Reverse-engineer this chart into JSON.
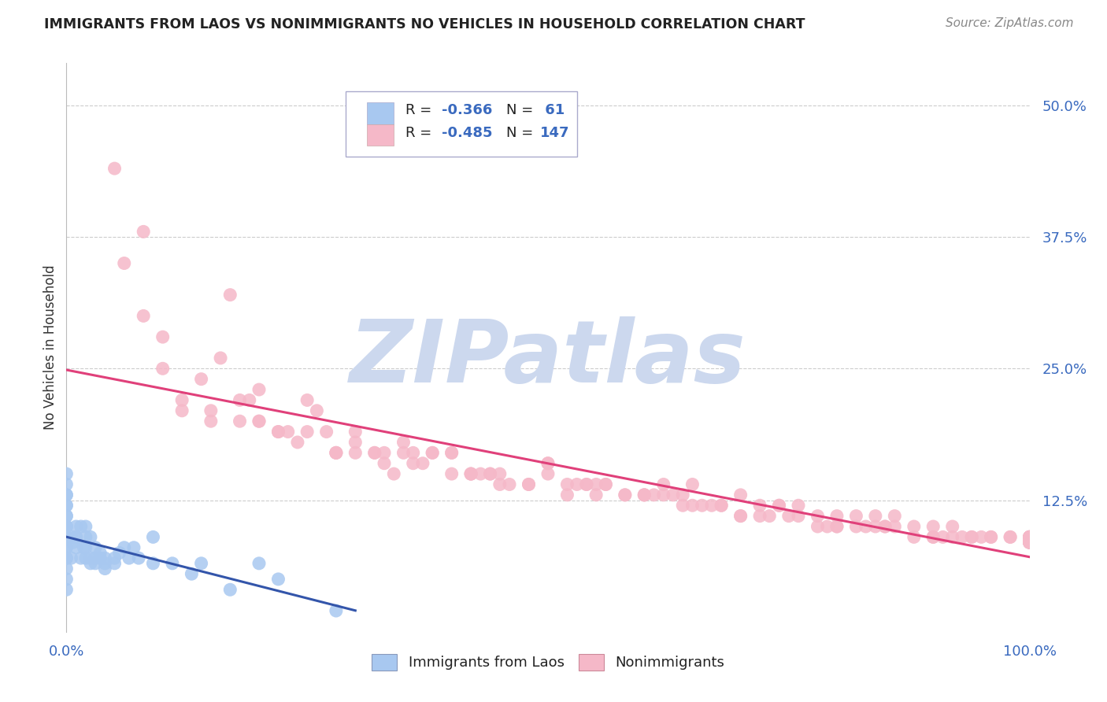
{
  "title": "IMMIGRANTS FROM LAOS VS NONIMMIGRANTS NO VEHICLES IN HOUSEHOLD CORRELATION CHART",
  "source": "Source: ZipAtlas.com",
  "ylabel": "No Vehicles in Household",
  "xlim": [
    0.0,
    1.0
  ],
  "ylim": [
    0.0,
    0.54
  ],
  "yticks_right": [
    0.125,
    0.25,
    0.375,
    0.5
  ],
  "yticklabels_right": [
    "12.5%",
    "25.0%",
    "37.5%",
    "50.0%"
  ],
  "blue_color": "#a8c8f0",
  "pink_color": "#f5b8c8",
  "blue_line_color": "#3355aa",
  "pink_line_color": "#e0407a",
  "blue_label": "Immigrants from Laos",
  "pink_label": "Nonimmigrants",
  "background_color": "#ffffff",
  "grid_color": "#cccccc",
  "watermark": "ZIPatlas",
  "watermark_color": "#ccd8ee",
  "title_color": "#222222",
  "axis_label_color": "#3a6abf",
  "blue_scatter_x": [
    0.0,
    0.0,
    0.0,
    0.0,
    0.0,
    0.0,
    0.0,
    0.0,
    0.0,
    0.0,
    0.0,
    0.0,
    0.0,
    0.0,
    0.0,
    0.0,
    0.0,
    0.0,
    0.0,
    0.0,
    0.005,
    0.005,
    0.007,
    0.01,
    0.01,
    0.01,
    0.01,
    0.015,
    0.015,
    0.018,
    0.02,
    0.02,
    0.02,
    0.02,
    0.025,
    0.025,
    0.025,
    0.03,
    0.03,
    0.03,
    0.035,
    0.035,
    0.04,
    0.04,
    0.04,
    0.05,
    0.05,
    0.055,
    0.06,
    0.065,
    0.07,
    0.075,
    0.09,
    0.09,
    0.11,
    0.13,
    0.14,
    0.17,
    0.2,
    0.22,
    0.28
  ],
  "blue_scatter_y": [
    0.04,
    0.05,
    0.06,
    0.07,
    0.07,
    0.08,
    0.08,
    0.09,
    0.09,
    0.1,
    0.1,
    0.1,
    0.11,
    0.11,
    0.12,
    0.12,
    0.13,
    0.13,
    0.14,
    0.15,
    0.07,
    0.09,
    0.085,
    0.08,
    0.09,
    0.09,
    0.1,
    0.07,
    0.1,
    0.08,
    0.07,
    0.08,
    0.09,
    0.1,
    0.065,
    0.07,
    0.09,
    0.065,
    0.07,
    0.08,
    0.07,
    0.075,
    0.06,
    0.065,
    0.07,
    0.065,
    0.07,
    0.075,
    0.08,
    0.07,
    0.08,
    0.07,
    0.065,
    0.09,
    0.065,
    0.055,
    0.065,
    0.04,
    0.065,
    0.05,
    0.02
  ],
  "pink_scatter_x": [
    0.05,
    0.08,
    0.1,
    0.12,
    0.15,
    0.17,
    0.18,
    0.2,
    0.22,
    0.25,
    0.27,
    0.28,
    0.3,
    0.32,
    0.33,
    0.35,
    0.36,
    0.38,
    0.4,
    0.42,
    0.44,
    0.45,
    0.48,
    0.5,
    0.52,
    0.54,
    0.56,
    0.58,
    0.6,
    0.62,
    0.64,
    0.65,
    0.68,
    0.7,
    0.72,
    0.74,
    0.76,
    0.78,
    0.8,
    0.82,
    0.84,
    0.86,
    0.88,
    0.9,
    0.92,
    0.94,
    0.96,
    0.98,
    1.0,
    1.0,
    1.0,
    1.0,
    1.0,
    1.0,
    1.0,
    1.0,
    1.0,
    1.0,
    1.0,
    1.0,
    0.1,
    0.15,
    0.2,
    0.25,
    0.3,
    0.35,
    0.4,
    0.45,
    0.5,
    0.55,
    0.6,
    0.65,
    0.7,
    0.75,
    0.8,
    0.85,
    0.9,
    0.95,
    1.0,
    1.0,
    0.12,
    0.18,
    0.24,
    0.3,
    0.36,
    0.42,
    0.48,
    0.54,
    0.6,
    0.66,
    0.72,
    0.78,
    0.84,
    0.9,
    0.96,
    1.0,
    1.0,
    1.0,
    0.22,
    0.28,
    0.34,
    0.4,
    0.46,
    0.52,
    0.58,
    0.64,
    0.7,
    0.76,
    0.82,
    0.88,
    0.94,
    1.0,
    0.08,
    0.16,
    0.26,
    0.38,
    0.5,
    0.62,
    0.74,
    0.86,
    0.98,
    0.2,
    0.32,
    0.44,
    0.56,
    0.68,
    0.8,
    0.92,
    0.06,
    0.14,
    0.23,
    0.33,
    0.43,
    0.53,
    0.63,
    0.73,
    0.83,
    0.93,
    0.28,
    0.42,
    0.55,
    0.67,
    0.79,
    0.91,
    0.19,
    0.37,
    0.61,
    0.85
  ],
  "pink_scatter_y": [
    0.44,
    0.3,
    0.28,
    0.21,
    0.2,
    0.32,
    0.22,
    0.2,
    0.19,
    0.22,
    0.19,
    0.17,
    0.19,
    0.17,
    0.16,
    0.18,
    0.17,
    0.17,
    0.17,
    0.15,
    0.15,
    0.14,
    0.14,
    0.15,
    0.14,
    0.14,
    0.14,
    0.13,
    0.13,
    0.13,
    0.13,
    0.14,
    0.12,
    0.13,
    0.12,
    0.12,
    0.12,
    0.11,
    0.11,
    0.11,
    0.11,
    0.1,
    0.1,
    0.1,
    0.1,
    0.09,
    0.09,
    0.09,
    0.09,
    0.085,
    0.09,
    0.085,
    0.085,
    0.085,
    0.09,
    0.085,
    0.09,
    0.085,
    0.085,
    0.09,
    0.25,
    0.21,
    0.23,
    0.19,
    0.18,
    0.17,
    0.17,
    0.15,
    0.16,
    0.14,
    0.13,
    0.12,
    0.11,
    0.11,
    0.1,
    0.1,
    0.09,
    0.09,
    0.09,
    0.085,
    0.22,
    0.2,
    0.18,
    0.17,
    0.16,
    0.15,
    0.14,
    0.14,
    0.13,
    0.12,
    0.11,
    0.1,
    0.1,
    0.09,
    0.09,
    0.085,
    0.085,
    0.09,
    0.19,
    0.17,
    0.15,
    0.15,
    0.14,
    0.13,
    0.13,
    0.12,
    0.11,
    0.11,
    0.1,
    0.09,
    0.09,
    0.09,
    0.38,
    0.26,
    0.21,
    0.17,
    0.16,
    0.14,
    0.12,
    0.11,
    0.09,
    0.2,
    0.17,
    0.15,
    0.14,
    0.12,
    0.1,
    0.09,
    0.35,
    0.24,
    0.19,
    0.17,
    0.15,
    0.14,
    0.13,
    0.11,
    0.1,
    0.09,
    0.17,
    0.15,
    0.13,
    0.12,
    0.1,
    0.09,
    0.22,
    0.16,
    0.13,
    0.1
  ]
}
